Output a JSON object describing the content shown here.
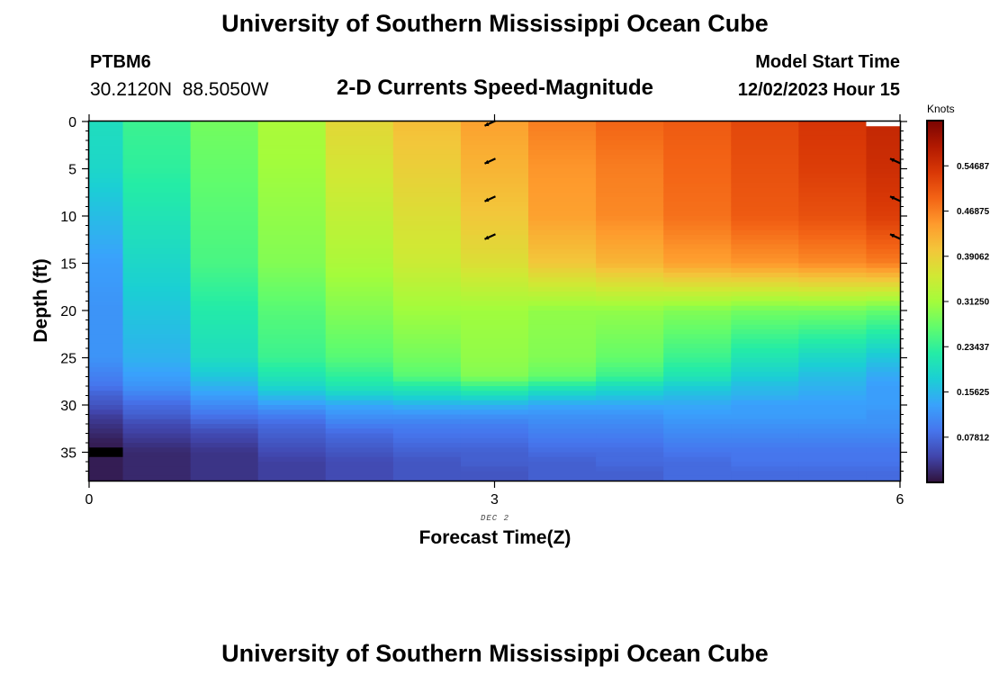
{
  "header": {
    "title": "University of Southern Mississippi Ocean Cube",
    "station_id": "PTBM6",
    "station_coords": "30.2120N  88.5050W",
    "plot_name": "2-D Currents Speed-Magnitude",
    "model_label": "Model Start Time",
    "model_time": "12/02/2023 Hour 15"
  },
  "footer": {
    "repeated_title": "University of Southern Mississippi Ocean Cube"
  },
  "colorbar": {
    "unit": "Knots",
    "tick_labels": [
      "0.54687",
      "0.46875",
      "0.39062",
      "0.31250",
      "0.23437",
      "0.15625",
      "0.07812"
    ],
    "range": [
      0,
      0.625
    ],
    "colors": [
      "#30123b",
      "#4145ab",
      "#4675ed",
      "#39a2fc",
      "#1bcfd4",
      "#24eca6",
      "#61fc6c",
      "#a4fc3b",
      "#d1e834",
      "#f3c63a",
      "#fe9b2d",
      "#f36315",
      "#d93806",
      "#b11901",
      "#7a0402"
    ]
  },
  "chart_data": {
    "type": "heatmap",
    "xlabel": "Forecast Time(Z)",
    "ylabel": "Depth (ft)",
    "x_date_label": "DEC 2",
    "x_ticks": [
      "0",
      "3",
      "6"
    ],
    "y_ticks": [
      "0",
      "5",
      "10",
      "15",
      "20",
      "25",
      "30",
      "35"
    ],
    "xlim": [
      0,
      6
    ],
    "ylim": [
      0,
      38
    ],
    "x": [
      0,
      0.5,
      1,
      1.5,
      2,
      2.5,
      3,
      3.5,
      4,
      4.5,
      5,
      5.5,
      6
    ],
    "y": [
      0,
      5,
      10,
      15,
      20,
      25,
      27,
      28,
      29,
      30,
      31,
      32,
      33,
      34,
      35,
      36,
      37
    ],
    "z": [
      [
        0.2,
        0.24,
        0.28,
        0.32,
        0.38,
        0.41,
        0.44,
        0.47,
        0.49,
        0.5,
        0.52,
        0.54,
        0.56
      ],
      [
        0.19,
        0.23,
        0.27,
        0.31,
        0.36,
        0.39,
        0.42,
        0.45,
        0.47,
        0.49,
        0.51,
        0.53,
        0.55
      ],
      [
        0.16,
        0.21,
        0.26,
        0.3,
        0.34,
        0.37,
        0.4,
        0.44,
        0.46,
        0.48,
        0.5,
        0.51,
        0.53
      ],
      [
        0.13,
        0.19,
        0.25,
        0.29,
        0.32,
        0.35,
        0.37,
        0.4,
        0.42,
        0.44,
        0.45,
        0.46,
        0.47
      ],
      [
        0.12,
        0.17,
        0.22,
        0.26,
        0.29,
        0.31,
        0.31,
        0.3,
        0.3,
        0.29,
        0.28,
        0.28,
        0.27
      ],
      [
        0.12,
        0.15,
        0.2,
        0.24,
        0.26,
        0.28,
        0.3,
        0.29,
        0.27,
        0.24,
        0.21,
        0.19,
        0.17
      ],
      [
        0.1,
        0.13,
        0.17,
        0.21,
        0.23,
        0.26,
        0.29,
        0.27,
        0.24,
        0.21,
        0.18,
        0.16,
        0.14
      ],
      [
        0.09,
        0.12,
        0.15,
        0.19,
        0.21,
        0.22,
        0.24,
        0.22,
        0.2,
        0.18,
        0.16,
        0.15,
        0.13
      ],
      [
        0.07,
        0.1,
        0.13,
        0.16,
        0.18,
        0.19,
        0.2,
        0.18,
        0.17,
        0.16,
        0.15,
        0.14,
        0.13
      ],
      [
        0.06,
        0.08,
        0.11,
        0.13,
        0.14,
        0.15,
        0.15,
        0.14,
        0.14,
        0.14,
        0.13,
        0.13,
        0.13
      ],
      [
        0.04,
        0.07,
        0.09,
        0.1,
        0.12,
        0.12,
        0.12,
        0.12,
        0.12,
        0.13,
        0.13,
        0.13,
        0.12
      ],
      [
        0.03,
        0.05,
        0.07,
        0.08,
        0.1,
        0.1,
        0.1,
        0.11,
        0.11,
        0.12,
        0.12,
        0.12,
        0.12
      ],
      [
        0.02,
        0.04,
        0.05,
        0.07,
        0.08,
        0.09,
        0.09,
        0.1,
        0.1,
        0.11,
        0.11,
        0.11,
        0.11
      ],
      [
        0.01,
        0.03,
        0.04,
        0.06,
        0.07,
        0.08,
        0.08,
        0.09,
        0.09,
        0.1,
        0.1,
        0.1,
        0.1
      ],
      [
        null,
        0.02,
        0.03,
        0.05,
        0.06,
        0.07,
        0.07,
        0.08,
        0.08,
        0.09,
        0.09,
        0.09,
        0.09
      ],
      [
        0.01,
        0.02,
        0.03,
        0.04,
        0.05,
        0.06,
        0.07,
        0.07,
        0.08,
        0.08,
        0.09,
        0.09,
        0.09
      ],
      [
        0.01,
        0.02,
        0.03,
        0.04,
        0.05,
        0.06,
        0.06,
        0.07,
        0.07,
        0.08,
        0.08,
        0.08,
        0.08
      ]
    ],
    "arrows": [
      {
        "x": 3,
        "depth": 0,
        "direction": "southwest"
      },
      {
        "x": 3,
        "depth": 4,
        "direction": "southwest"
      },
      {
        "x": 3,
        "depth": 8,
        "direction": "southwest"
      },
      {
        "x": 3,
        "depth": 12,
        "direction": "southwest"
      },
      {
        "x": 6,
        "depth": 4,
        "direction": "northwest"
      },
      {
        "x": 6,
        "depth": 8,
        "direction": "northwest"
      },
      {
        "x": 6,
        "depth": 12,
        "direction": "northwest"
      }
    ],
    "grid": false
  }
}
